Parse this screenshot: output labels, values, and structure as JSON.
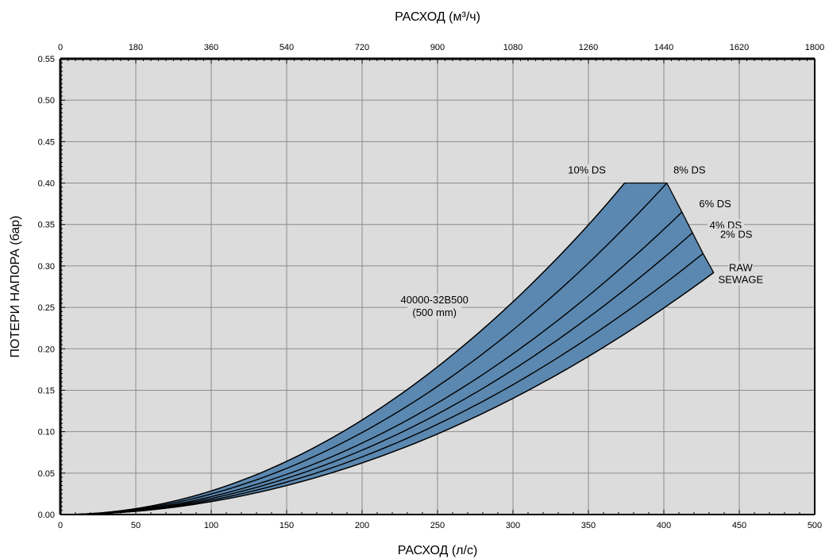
{
  "chart_data": {
    "type": "area",
    "xlabel": "РАСХОД (л/с)",
    "x2label": "РАСХОД (м³/ч)",
    "ylabel": "ПОТЕРИ НАПОРА (бар)",
    "xlim": [
      0,
      500
    ],
    "ylim": [
      0,
      0.55
    ],
    "x_ticks": [
      "0",
      "50",
      "100",
      "150",
      "200",
      "250",
      "300",
      "350",
      "400",
      "450",
      "500"
    ],
    "x2_ticks": [
      "0",
      "180",
      "360",
      "540",
      "720",
      "900",
      "1080",
      "1260",
      "1440",
      "1620",
      "1800"
    ],
    "y_ticks": [
      "0.00",
      "0.05",
      "0.10",
      "0.15",
      "0.20",
      "0.25",
      "0.30",
      "0.35",
      "0.40",
      "0.45",
      "0.50",
      "0.55"
    ],
    "grid": true,
    "colors": {
      "plot_background": "#dcdcdc",
      "band_fill": "#5b88b0",
      "curve": "#000000",
      "grid": "#8c8c8c"
    },
    "model_label": [
      "40000-32B500",
      "(500 mm)"
    ],
    "series": [
      {
        "name": "10% DS",
        "label": "10% DS",
        "x": [
          0,
          50,
          100,
          150,
          200,
          250,
          300,
          350,
          374
        ],
        "y": [
          0,
          0.0071,
          0.0285,
          0.0642,
          0.1141,
          0.1783,
          0.2567,
          0.3495,
          0.4
        ]
      },
      {
        "name": "8% DS",
        "label": "8% DS",
        "x": [
          0,
          50,
          100,
          150,
          200,
          250,
          300,
          350,
          402
        ],
        "y": [
          0,
          0.0062,
          0.0248,
          0.0557,
          0.099,
          0.1547,
          0.2228,
          0.3033,
          0.4
        ]
      },
      {
        "name": "6% DS",
        "label": "6% DS",
        "x": [
          0,
          50,
          100,
          150,
          200,
          250,
          300,
          350,
          412
        ],
        "y": [
          0,
          0.0054,
          0.0216,
          0.0485,
          0.0862,
          0.1347,
          0.194,
          0.264,
          0.365
        ]
      },
      {
        "name": "4% DS",
        "label": "4% DS",
        "x": [
          0,
          50,
          100,
          150,
          200,
          250,
          300,
          350,
          419
        ],
        "y": [
          0,
          0.0048,
          0.0194,
          0.0437,
          0.0777,
          0.1213,
          0.1747,
          0.2378,
          0.34
        ]
      },
      {
        "name": "2% DS",
        "label": "2% DS",
        "x": [
          0,
          50,
          100,
          150,
          200,
          250,
          300,
          350,
          426
        ],
        "y": [
          0,
          0.0044,
          0.0174,
          0.0392,
          0.0696,
          0.1089,
          0.1567,
          0.2133,
          0.315
        ]
      },
      {
        "name": "RAW SEWAGE",
        "label": [
          "RAW",
          "SEWAGE"
        ],
        "x": [
          0,
          50,
          100,
          150,
          200,
          250,
          300,
          350,
          433
        ],
        "y": [
          0,
          0.0039,
          0.0156,
          0.035,
          0.0623,
          0.0973,
          0.1402,
          0.1908,
          0.292
        ]
      }
    ]
  }
}
